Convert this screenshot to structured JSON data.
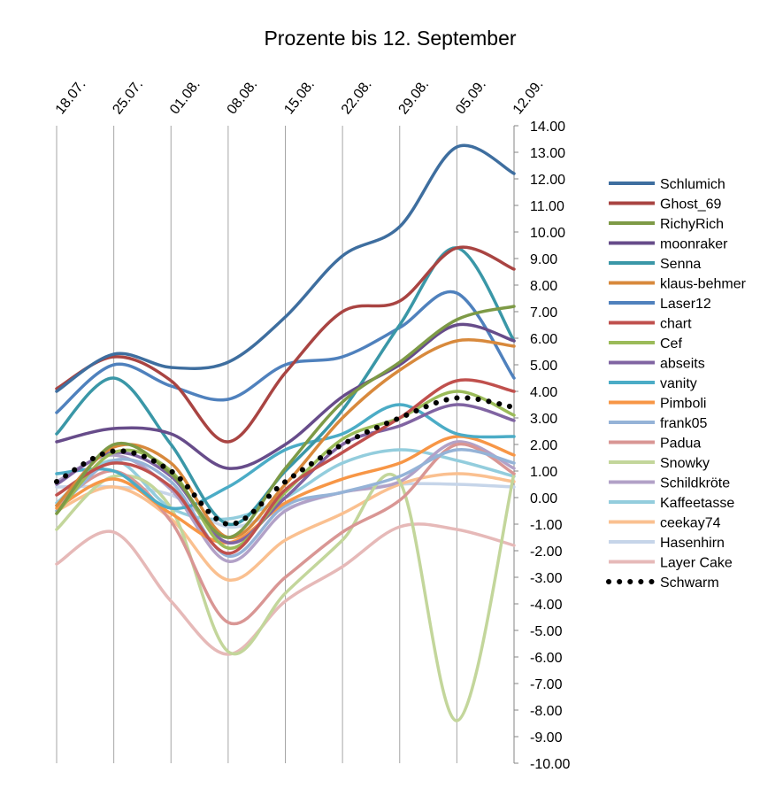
{
  "chart_data": {
    "type": "line",
    "title": "Prozente bis 12. September",
    "xlabel": "",
    "ylabel": "",
    "categories": [
      "18.07.",
      "25.07.",
      "01.08.",
      "08.08.",
      "15.08.",
      "22.08.",
      "29.08.",
      "05.09.",
      "12.09."
    ],
    "ylim": [
      -10,
      14
    ],
    "ytick_step": 1,
    "y_tick_labels": [
      "14.00",
      "13.00",
      "12.00",
      "11.00",
      "10.00",
      "9.00",
      "8.00",
      "7.00",
      "6.00",
      "5.00",
      "4.00",
      "3.00",
      "2.00",
      "1.00",
      "0.00",
      "-1.00",
      "-2.00",
      "-3.00",
      "-4.00",
      "-5.00",
      "-6.00",
      "-7.00",
      "-8.00",
      "-9.00",
      "-10.00"
    ],
    "grid": "vertical",
    "legend_position": "right",
    "series": [
      {
        "name": "Schlumich",
        "color": "#3e6e9f",
        "values": [
          4.0,
          5.4,
          4.9,
          5.1,
          6.8,
          9.1,
          10.2,
          13.2,
          12.2
        ]
      },
      {
        "name": "Ghost_69",
        "color": "#a94442",
        "values": [
          4.1,
          5.3,
          4.4,
          2.1,
          4.7,
          7.0,
          7.4,
          9.4,
          8.6
        ]
      },
      {
        "name": "RichyRich",
        "color": "#7d9a46",
        "values": [
          -0.6,
          2.0,
          0.9,
          -1.5,
          1.1,
          3.6,
          5.1,
          6.7,
          7.2
        ]
      },
      {
        "name": "moonraker",
        "color": "#674c8a",
        "values": [
          2.1,
          2.6,
          2.4,
          1.1,
          2.0,
          3.8,
          5.0,
          6.5,
          5.9
        ]
      },
      {
        "name": "Senna",
        "color": "#3a97a7",
        "values": [
          2.4,
          4.5,
          2.0,
          -1.0,
          1.0,
          3.3,
          6.5,
          9.4,
          5.9
        ]
      },
      {
        "name": "klaus-behmer",
        "color": "#d8893c",
        "values": [
          -0.3,
          1.9,
          1.3,
          -1.5,
          0.5,
          3.0,
          4.8,
          5.9,
          5.7
        ]
      },
      {
        "name": "Laser12",
        "color": "#4f81bd",
        "values": [
          3.2,
          5.0,
          4.2,
          3.7,
          5.0,
          5.3,
          6.4,
          7.7,
          4.5
        ]
      },
      {
        "name": "chart",
        "color": "#c0504d",
        "values": [
          0.1,
          1.3,
          0.4,
          -2.1,
          0.3,
          1.7,
          3.0,
          4.4,
          4.0
        ]
      },
      {
        "name": "Cef",
        "color": "#9bbb59",
        "values": [
          -0.6,
          1.7,
          1.0,
          -1.9,
          0.2,
          2.2,
          3.0,
          4.0,
          3.1
        ]
      },
      {
        "name": "abseits",
        "color": "#8064a2",
        "values": [
          0.5,
          1.7,
          0.8,
          -1.7,
          0.0,
          2.0,
          2.7,
          3.5,
          2.9
        ]
      },
      {
        "name": "vanity",
        "color": "#4bacc6",
        "values": [
          0.9,
          1.0,
          -0.4,
          0.4,
          1.8,
          2.4,
          3.5,
          2.4,
          2.3
        ]
      },
      {
        "name": "Pimboli",
        "color": "#f79646",
        "values": [
          -0.4,
          0.7,
          -0.6,
          -1.7,
          -0.2,
          0.7,
          1.3,
          2.3,
          1.6
        ]
      },
      {
        "name": "frank05",
        "color": "#95b3d7",
        "values": [
          -0.5,
          1.4,
          0.6,
          -2.2,
          -0.3,
          0.2,
          0.8,
          1.8,
          1.3
        ]
      },
      {
        "name": "Padua",
        "color": "#d99694",
        "values": [
          -0.3,
          1.0,
          -0.9,
          -4.7,
          -3.0,
          -1.3,
          -0.1,
          2.0,
          0.9
        ]
      },
      {
        "name": "Snowky",
        "color": "#c3d69b",
        "values": [
          -1.2,
          0.8,
          -0.4,
          -5.8,
          -3.6,
          -1.6,
          0.6,
          -8.4,
          0.9
        ]
      },
      {
        "name": "Schildkröte",
        "color": "#b2a1c7",
        "values": [
          0.6,
          1.6,
          0.3,
          -2.4,
          -0.5,
          0.2,
          0.6,
          2.1,
          1.1
        ]
      },
      {
        "name": "Kaffeetasse",
        "color": "#93cddd",
        "values": [
          -0.2,
          1.4,
          -0.4,
          -0.8,
          0.0,
          1.3,
          1.8,
          1.4,
          0.8
        ]
      },
      {
        "name": "ceekay74",
        "color": "#fac090",
        "values": [
          -0.5,
          0.4,
          -0.8,
          -3.1,
          -1.6,
          -0.6,
          0.5,
          0.9,
          0.6
        ]
      },
      {
        "name": "Hasenhirn",
        "color": "#c6d5e9",
        "values": [
          0.4,
          0.4,
          0.1,
          -1.1,
          -0.4,
          0.2,
          0.5,
          0.5,
          0.4
        ]
      },
      {
        "name": "Layer Cake",
        "color": "#e6b9b8",
        "values": [
          -2.5,
          -1.3,
          -3.9,
          -5.9,
          -3.9,
          -2.6,
          -1.1,
          -1.2,
          -1.8
        ]
      },
      {
        "name": "Schwarm",
        "color": "#000000",
        "dotted": true,
        "values": [
          0.6,
          1.75,
          1.0,
          -1.0,
          0.6,
          2.0,
          3.0,
          3.75,
          3.4
        ]
      }
    ]
  }
}
